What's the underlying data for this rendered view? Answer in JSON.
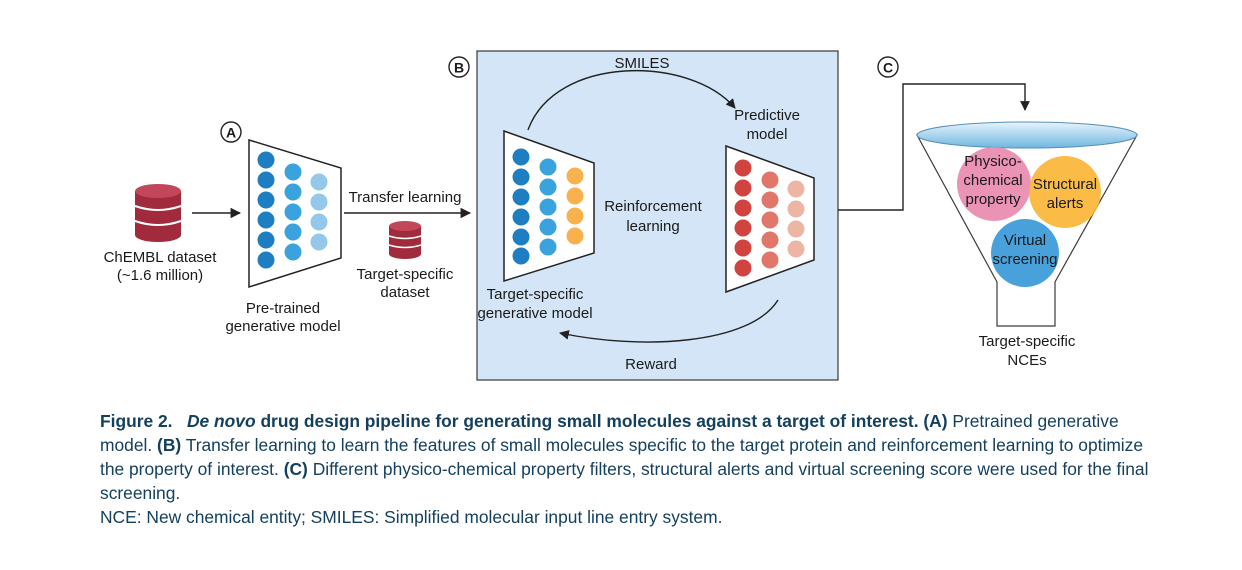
{
  "diagram": {
    "panel_labels": {
      "a": "A",
      "b": "B",
      "c": "C"
    },
    "chembl": {
      "line1": "ChEMBL dataset",
      "line2": "(~1.6 million)"
    },
    "pretrained": {
      "line1": "Pre-trained",
      "line2": "generative model"
    },
    "transfer_learning": "Transfer learning",
    "target_dataset": {
      "line1": "Target-specific",
      "line2": "dataset"
    },
    "smiles": "SMILES",
    "predictive": {
      "line1": "Predictive",
      "line2": "model"
    },
    "reinforcement": {
      "line1": "Reinforcement",
      "line2": "learning"
    },
    "target_generative": {
      "line1": "Target-specific",
      "line2": "generative model"
    },
    "reward": "Reward",
    "funnel": {
      "physico": {
        "line1": "Physico-",
        "line2": "chemical",
        "line3": "property"
      },
      "structural": {
        "line1": "Structural",
        "line2": "alerts"
      },
      "virtual": {
        "line1": "Virtual",
        "line2": "screening"
      }
    },
    "nces": {
      "line1": "Target-specific",
      "line2": "NCEs"
    },
    "colors": {
      "panel_b_fill": "#d3e5f6",
      "database": "#a12a3c",
      "node_dark_blue": "#1d7ec2",
      "node_mid_blue": "#3aa3dd",
      "node_light_blue": "#93c8ea",
      "node_orange": "#f8b24d",
      "node_red": "#d0433f",
      "node_mid_red": "#e0776a",
      "node_light_red": "#edb5a4",
      "physico_circle": "#e98aae",
      "structural_circle": "#fab637",
      "virtual_circle": "#3a99d9",
      "caption_text": "#14405e"
    }
  },
  "caption": {
    "figure_label": "Figure 2.",
    "title_italic": "De novo",
    "title_rest": "drug design pipeline for generating small molecules against a target of interest.",
    "a_label": "(A)",
    "a_text": "Pretrained generative model.",
    "b_label": "(B)",
    "b_text": "Transfer learning to learn the features of small molecules specific to the target protein and reinforcement learning to optimize the property of interest.",
    "c_label": "(C)",
    "c_text": "Different physico-chemical property filters, structural alerts and virtual screening score were used for the final screening.",
    "abbreviations": "NCE: New chemical entity; SMILES: Simplified molecular input line entry system."
  }
}
